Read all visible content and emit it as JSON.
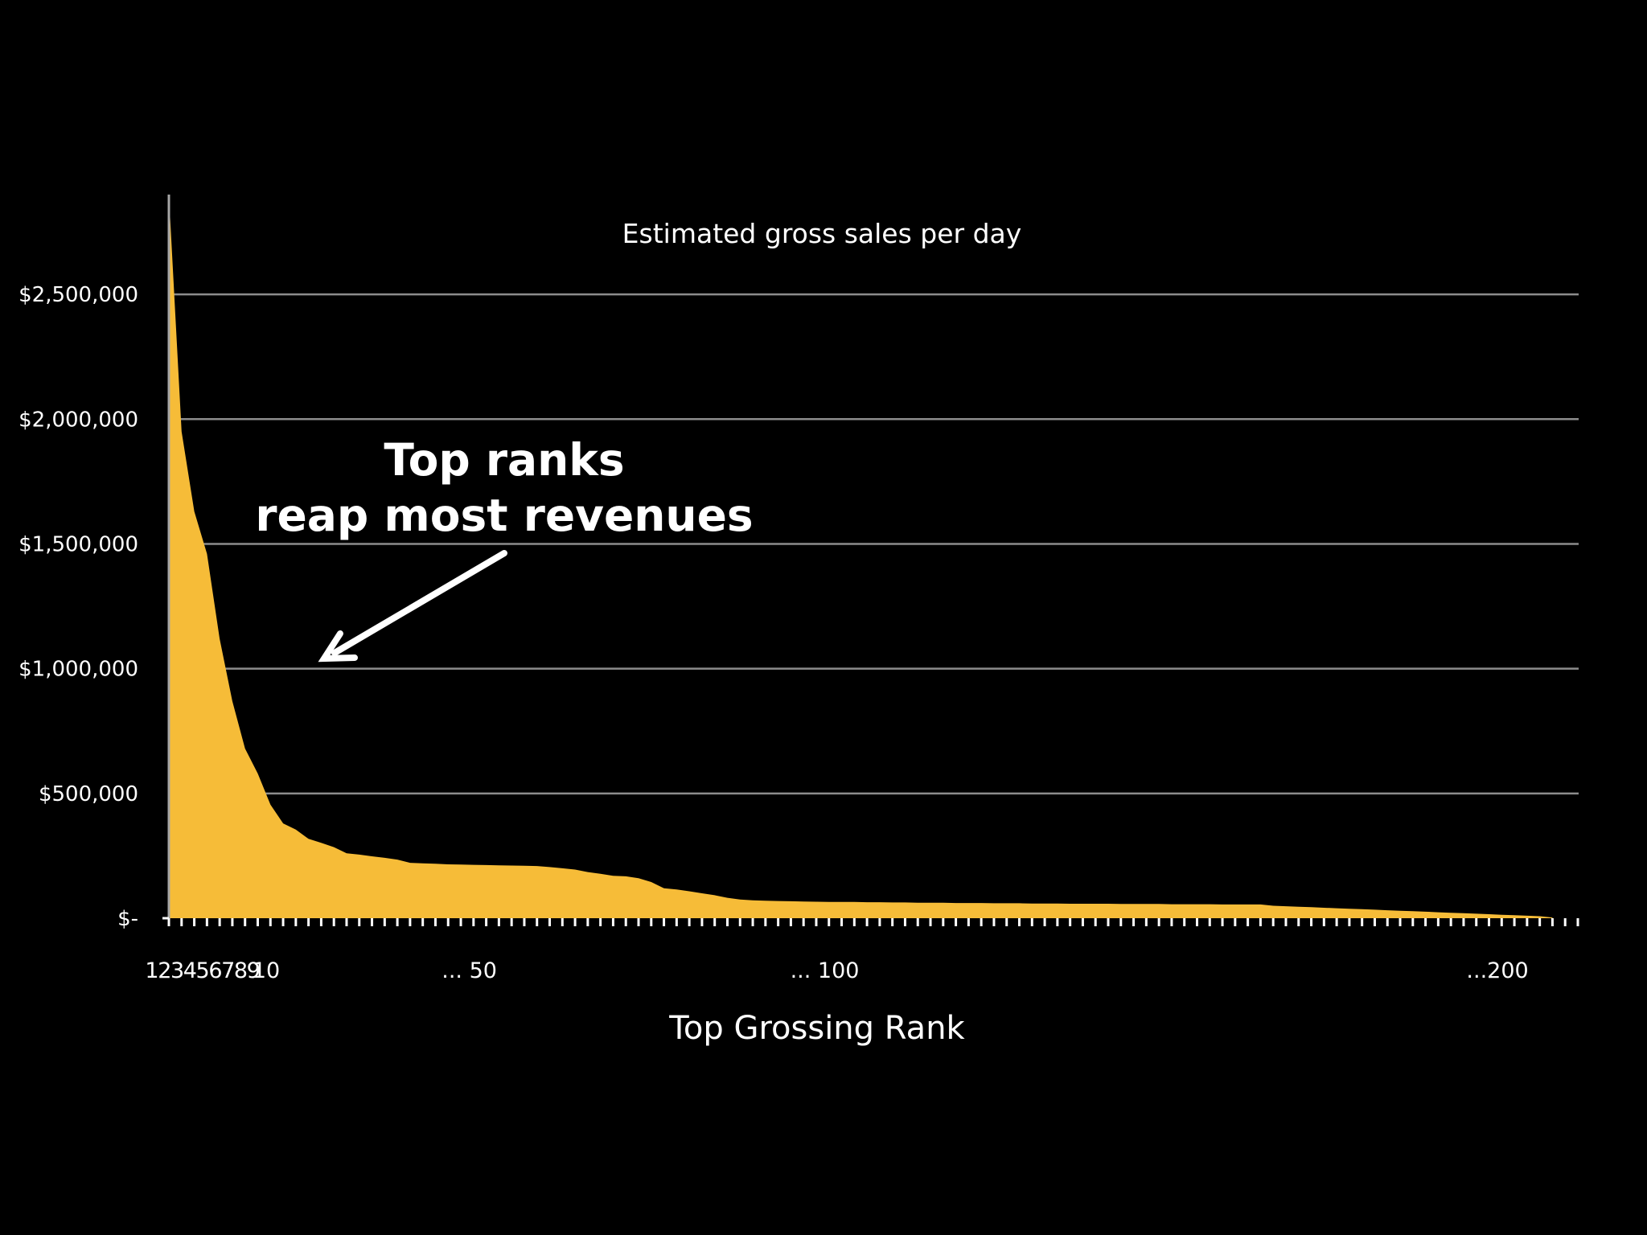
{
  "colors": {
    "background": "#000000",
    "area_fill": "#F6BC38",
    "text": "#FFFFFF",
    "gridline": "#8C8C8C"
  },
  "chart_data": {
    "type": "area",
    "title": "Estimated gross sales per day",
    "xlabel": "Top Grossing Rank",
    "ylabel": "",
    "ylim": [
      0,
      2900000
    ],
    "grid": true,
    "legend": "none",
    "y_ticks": [
      {
        "value": 0,
        "label": "$-"
      },
      {
        "value": 500000,
        "label": "$500,000"
      },
      {
        "value": 1000000,
        "label": "$1,000,000"
      },
      {
        "value": 1500000,
        "label": "$1,500,000"
      },
      {
        "value": 2000000,
        "label": "$2,000,000"
      },
      {
        "value": 2500000,
        "label": "$2,500,000"
      }
    ],
    "x_tick_labels": [
      {
        "index": 0,
        "label": "1"
      },
      {
        "index": 1,
        "label": "2"
      },
      {
        "index": 2,
        "label": "3"
      },
      {
        "index": 3,
        "label": "4"
      },
      {
        "index": 4,
        "label": "5"
      },
      {
        "index": 5,
        "label": "6"
      },
      {
        "index": 6,
        "label": "7"
      },
      {
        "index": 7,
        "label": "8"
      },
      {
        "index": 8,
        "label": "9"
      },
      {
        "index": 9,
        "label": "10"
      },
      {
        "index": 25,
        "label": "... 50"
      },
      {
        "index": 53,
        "label": "... 100"
      },
      {
        "index": 106,
        "label": "...200"
      }
    ],
    "tick_count": 112,
    "values": [
      2900000,
      1950000,
      1630000,
      1460000,
      1120000,
      870000,
      680000,
      580000,
      455000,
      380000,
      355000,
      318000,
      302000,
      285000,
      260000,
      255000,
      248000,
      242000,
      235000,
      222000,
      220000,
      218000,
      216000,
      215000,
      214000,
      213000,
      212000,
      211000,
      210000,
      209000,
      205000,
      200000,
      195000,
      185000,
      178000,
      170000,
      168000,
      160000,
      145000,
      120000,
      115000,
      108000,
      100000,
      92000,
      82000,
      75000,
      72000,
      70000,
      69000,
      68000,
      67000,
      66000,
      65000,
      65000,
      65000,
      64000,
      64000,
      63000,
      63000,
      62000,
      62000,
      62000,
      61000,
      61000,
      61000,
      60000,
      60000,
      60000,
      59000,
      59000,
      59000,
      58000,
      58000,
      58000,
      58000,
      57000,
      57000,
      57000,
      57000,
      56000,
      56000,
      56000,
      56000,
      55000,
      55000,
      55000,
      55000,
      50000,
      48000,
      46000,
      44000,
      42000,
      40000,
      38000,
      36000,
      34000,
      32000,
      30000,
      28000,
      26000,
      24000,
      22000,
      20000,
      18000,
      16000,
      14000,
      12000,
      10000,
      8000,
      3000
    ],
    "annotations": [
      {
        "text_lines": [
          "Top ranks",
          "reap most revenues"
        ]
      }
    ]
  }
}
